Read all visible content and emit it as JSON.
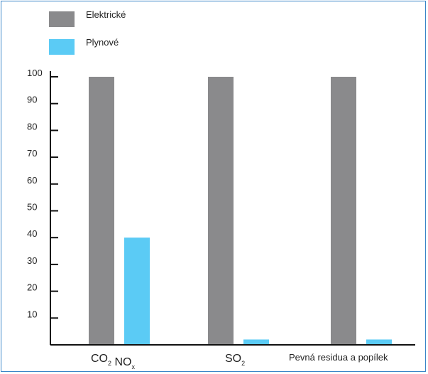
{
  "chart_data": {
    "type": "bar",
    "categories": [
      "CO2 NOx",
      "SO2",
      "Pevná residua a popílek"
    ],
    "category_labels": [
      {
        "parts": [
          {
            "text": "CO",
            "sub": "2"
          },
          {
            "text": " NO",
            "sub": "x"
          }
        ]
      },
      {
        "parts": [
          {
            "text": "SO",
            "sub": "2"
          }
        ]
      },
      {
        "parts": [
          {
            "text": "Pevná residua a popílek",
            "sub": ""
          }
        ]
      }
    ],
    "series": [
      {
        "name": "Elektrické",
        "color": "#8a8a8c",
        "values": [
          100,
          100,
          100
        ]
      },
      {
        "name": "Plynové",
        "color": "#5bcbf5",
        "values": [
          40,
          2,
          2
        ]
      }
    ],
    "yticks": [
      "10",
      "20",
      "30",
      "40",
      "50",
      "60",
      "70",
      "80",
      "90",
      "100"
    ],
    "ylim": [
      0,
      100
    ],
    "title": "",
    "xlabel": "",
    "ylabel": "",
    "legend_position": "top-left",
    "grid": false
  }
}
